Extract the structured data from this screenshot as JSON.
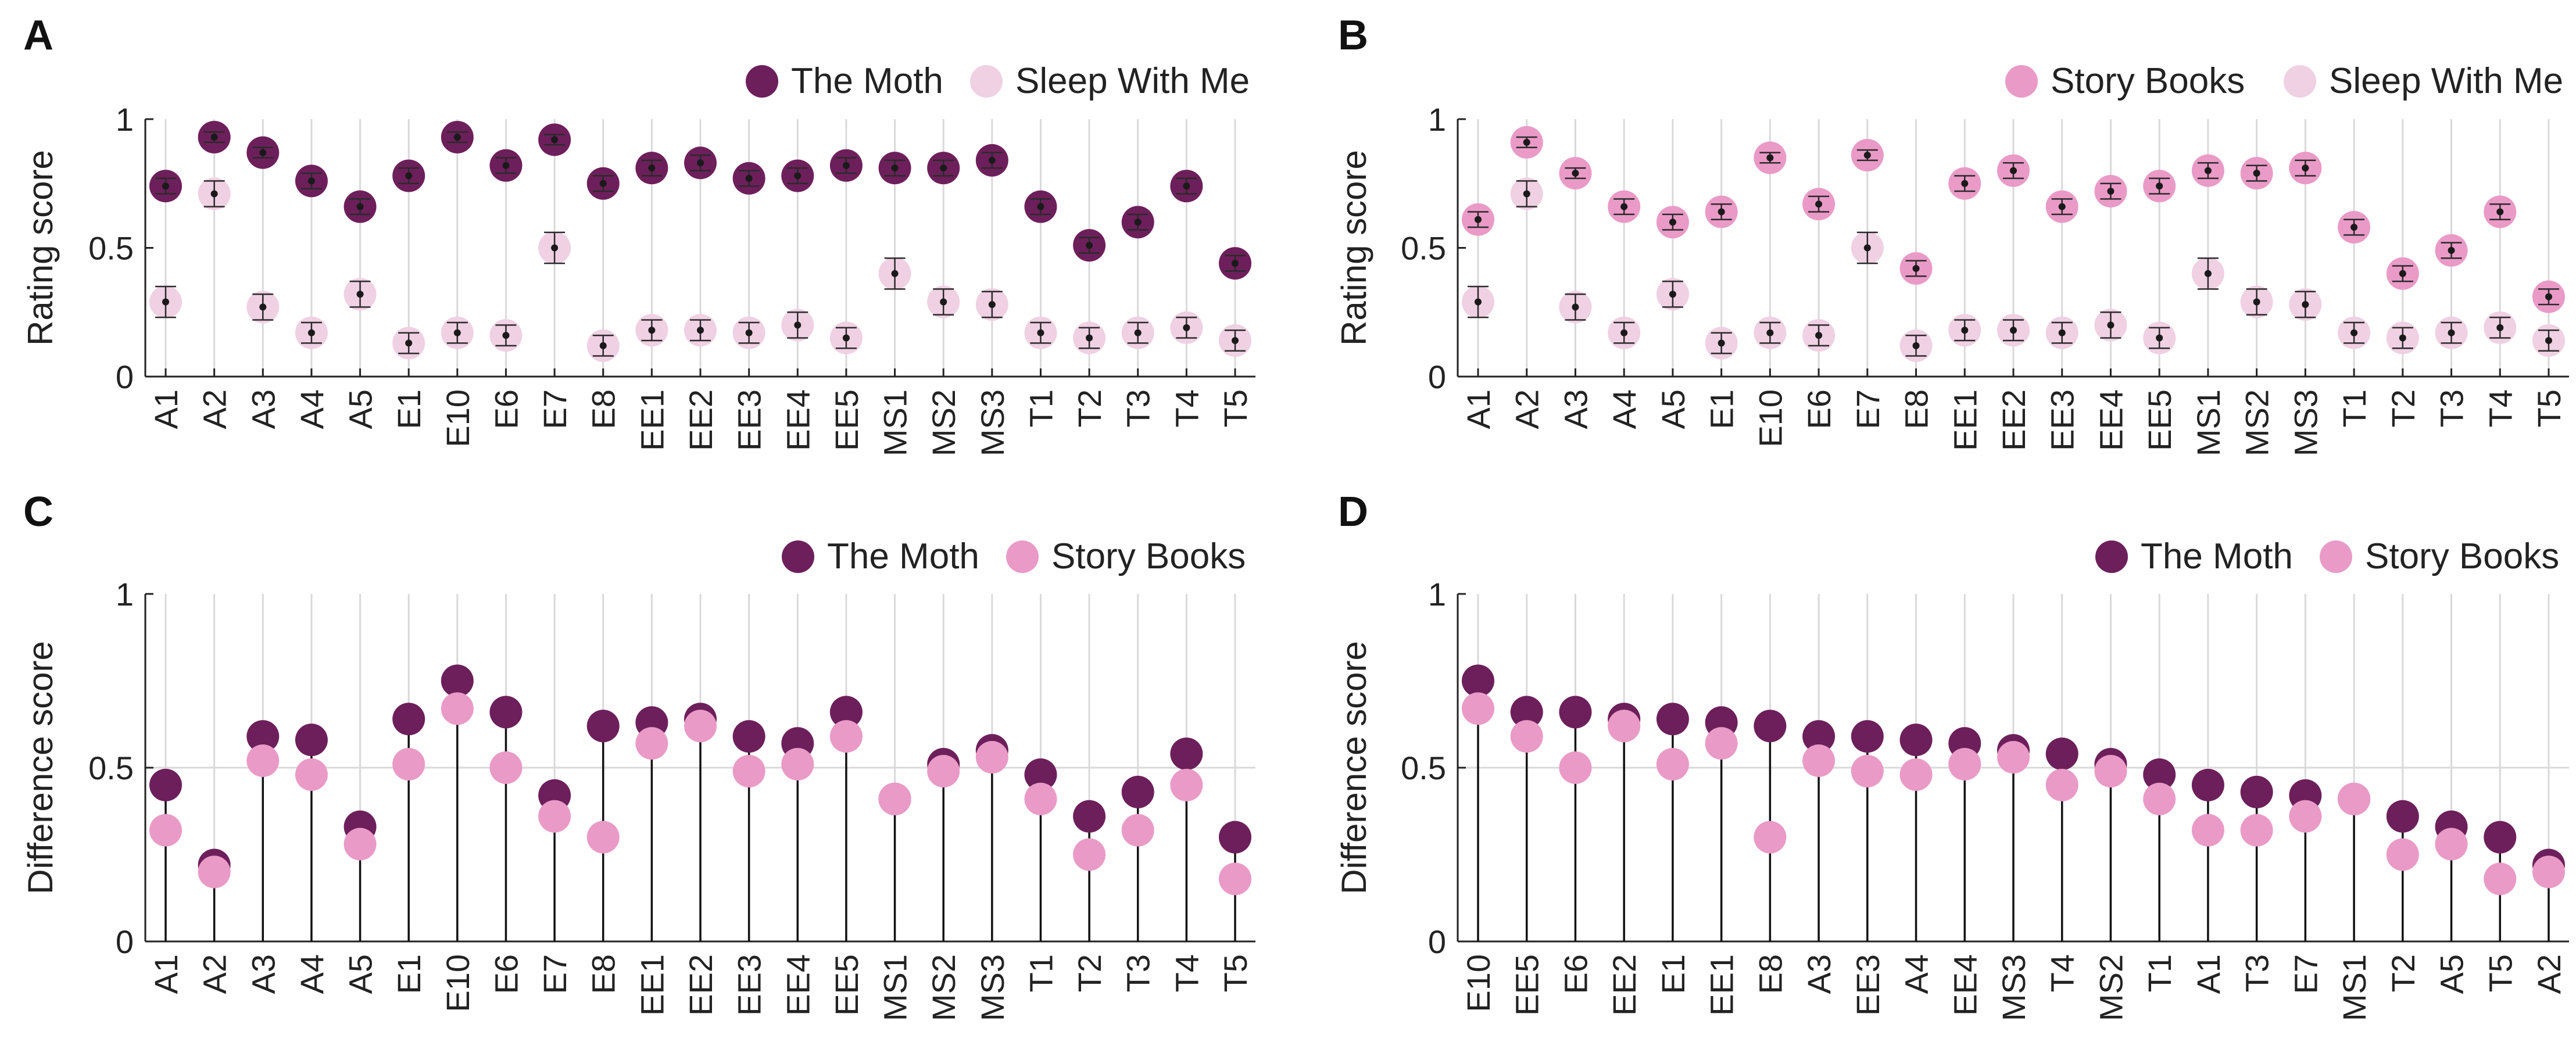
{
  "colors": {
    "the_moth": "#6d1f5b",
    "sleep_with_me": "#f0d0e3",
    "story_books": "#ea9ac7",
    "axis": "#222222",
    "grid": "#d9d9d9",
    "stem": "#111111"
  },
  "chart_data": [
    {
      "panel": "A",
      "type": "scatter",
      "ylabel": "Rating score",
      "xlabel": "",
      "ylim": [
        0,
        1
      ],
      "yticks": [
        "0",
        "0.5",
        "1"
      ],
      "grid": "vertical",
      "legend_position": "top-right",
      "categories": [
        "A1",
        "A2",
        "A3",
        "A4",
        "A5",
        "E1",
        "E10",
        "E6",
        "E7",
        "E8",
        "EE1",
        "EE2",
        "EE3",
        "EE4",
        "EE5",
        "MS1",
        "MS2",
        "MS3",
        "T1",
        "T2",
        "T3",
        "T4",
        "T5"
      ],
      "series": [
        {
          "name": "The Moth",
          "color_key": "the_moth",
          "values": [
            0.74,
            0.93,
            0.87,
            0.76,
            0.66,
            0.78,
            0.93,
            0.82,
            0.92,
            0.75,
            0.81,
            0.83,
            0.77,
            0.78,
            0.82,
            0.81,
            0.81,
            0.84,
            0.66,
            0.51,
            0.6,
            0.74,
            0.44
          ],
          "errors": [
            0.03,
            0.02,
            0.02,
            0.03,
            0.03,
            0.03,
            0.02,
            0.03,
            0.02,
            0.03,
            0.03,
            0.03,
            0.03,
            0.03,
            0.03,
            0.03,
            0.03,
            0.03,
            0.03,
            0.03,
            0.03,
            0.03,
            0.03
          ]
        },
        {
          "name": "Sleep With Me",
          "color_key": "sleep_with_me",
          "values": [
            0.29,
            0.71,
            0.27,
            0.17,
            0.32,
            0.13,
            0.17,
            0.16,
            0.5,
            0.12,
            0.18,
            0.18,
            0.17,
            0.2,
            0.15,
            0.4,
            0.29,
            0.28,
            0.17,
            0.15,
            0.17,
            0.19,
            0.14
          ],
          "errors": [
            0.06,
            0.05,
            0.05,
            0.04,
            0.05,
            0.04,
            0.04,
            0.04,
            0.06,
            0.04,
            0.04,
            0.04,
            0.04,
            0.05,
            0.04,
            0.06,
            0.05,
            0.05,
            0.04,
            0.04,
            0.04,
            0.04,
            0.04
          ]
        }
      ]
    },
    {
      "panel": "B",
      "type": "scatter",
      "ylabel": "Rating score",
      "xlabel": "",
      "ylim": [
        0,
        1
      ],
      "yticks": [
        "0",
        "0.5",
        "1"
      ],
      "grid": "vertical",
      "legend_position": "top-right",
      "categories": [
        "A1",
        "A2",
        "A3",
        "A4",
        "A5",
        "E1",
        "E10",
        "E6",
        "E7",
        "E8",
        "EE1",
        "EE2",
        "EE3",
        "EE4",
        "EE5",
        "MS1",
        "MS2",
        "MS3",
        "T1",
        "T2",
        "T3",
        "T4",
        "T5"
      ],
      "series": [
        {
          "name": "Story Books",
          "color_key": "story_books",
          "values": [
            0.61,
            0.91,
            0.79,
            0.66,
            0.6,
            0.64,
            0.85,
            0.67,
            0.86,
            0.42,
            0.75,
            0.8,
            0.66,
            0.72,
            0.74,
            0.8,
            0.79,
            0.81,
            0.58,
            0.4,
            0.49,
            0.64,
            0.31
          ],
          "errors": [
            0.03,
            0.02,
            0.02,
            0.03,
            0.03,
            0.03,
            0.02,
            0.03,
            0.02,
            0.03,
            0.03,
            0.03,
            0.03,
            0.03,
            0.03,
            0.03,
            0.03,
            0.03,
            0.03,
            0.03,
            0.03,
            0.03,
            0.03
          ]
        },
        {
          "name": "Sleep With Me",
          "color_key": "sleep_with_me",
          "values": [
            0.29,
            0.71,
            0.27,
            0.17,
            0.32,
            0.13,
            0.17,
            0.16,
            0.5,
            0.12,
            0.18,
            0.18,
            0.17,
            0.2,
            0.15,
            0.4,
            0.29,
            0.28,
            0.17,
            0.15,
            0.17,
            0.19,
            0.14
          ],
          "errors": [
            0.06,
            0.05,
            0.05,
            0.04,
            0.05,
            0.04,
            0.04,
            0.04,
            0.06,
            0.04,
            0.04,
            0.04,
            0.04,
            0.05,
            0.04,
            0.06,
            0.05,
            0.05,
            0.04,
            0.04,
            0.04,
            0.04,
            0.04
          ]
        }
      ]
    },
    {
      "panel": "C",
      "type": "stem",
      "ylabel": "Difference score",
      "xlabel": "",
      "ylim": [
        0,
        1
      ],
      "yticks": [
        "0",
        "0.5",
        "1"
      ],
      "grid": "both",
      "legend_position": "top-right",
      "categories": [
        "A1",
        "A2",
        "A3",
        "A4",
        "A5",
        "E1",
        "E10",
        "E6",
        "E7",
        "E8",
        "EE1",
        "EE2",
        "EE3",
        "EE4",
        "EE5",
        "MS1",
        "MS2",
        "MS3",
        "T1",
        "T2",
        "T3",
        "T4",
        "T5"
      ],
      "series": [
        {
          "name": "The Moth",
          "color_key": "the_moth",
          "values": [
            0.45,
            0.22,
            0.59,
            0.58,
            0.33,
            0.64,
            0.75,
            0.66,
            0.42,
            0.62,
            0.63,
            0.64,
            0.59,
            0.57,
            0.66,
            0.41,
            0.51,
            0.55,
            0.48,
            0.36,
            0.43,
            0.54,
            0.3
          ]
        },
        {
          "name": "Story Books",
          "color_key": "story_books",
          "values": [
            0.32,
            0.2,
            0.52,
            0.48,
            0.28,
            0.51,
            0.67,
            0.5,
            0.36,
            0.3,
            0.57,
            0.62,
            0.49,
            0.51,
            0.59,
            0.41,
            0.49,
            0.53,
            0.41,
            0.25,
            0.32,
            0.45,
            0.18
          ]
        }
      ]
    },
    {
      "panel": "D",
      "type": "stem",
      "ylabel": "Difference score",
      "xlabel": "",
      "ylim": [
        0,
        1
      ],
      "yticks": [
        "0",
        "0.5",
        "1"
      ],
      "grid": "both",
      "legend_position": "top-right",
      "categories": [
        "E10",
        "EE5",
        "E6",
        "EE2",
        "E1",
        "EE1",
        "E8",
        "A3",
        "EE3",
        "A4",
        "EE4",
        "MS3",
        "T4",
        "MS2",
        "T1",
        "A1",
        "T3",
        "E7",
        "MS1",
        "T2",
        "A5",
        "T5",
        "A2"
      ],
      "series": [
        {
          "name": "The Moth",
          "color_key": "the_moth",
          "values": [
            0.75,
            0.66,
            0.66,
            0.64,
            0.64,
            0.63,
            0.62,
            0.59,
            0.59,
            0.58,
            0.57,
            0.55,
            0.54,
            0.51,
            0.48,
            0.45,
            0.43,
            0.42,
            0.41,
            0.36,
            0.33,
            0.3,
            0.22
          ]
        },
        {
          "name": "Story Books",
          "color_key": "story_books",
          "values": [
            0.67,
            0.59,
            0.5,
            0.62,
            0.51,
            0.57,
            0.3,
            0.52,
            0.49,
            0.48,
            0.51,
            0.53,
            0.45,
            0.49,
            0.41,
            0.32,
            0.32,
            0.36,
            0.41,
            0.25,
            0.28,
            0.18,
            0.2
          ]
        }
      ]
    }
  ]
}
